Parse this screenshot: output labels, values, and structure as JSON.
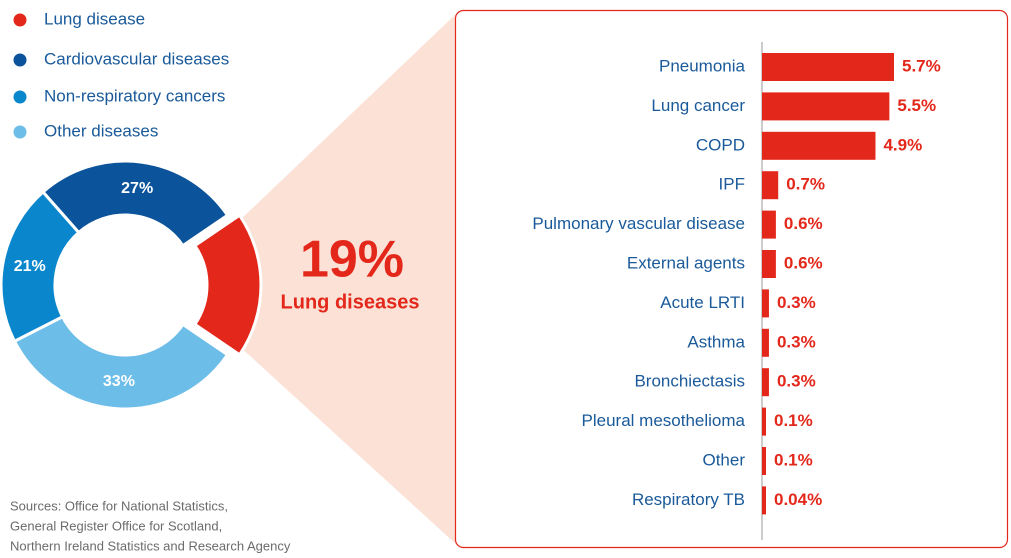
{
  "chart_data": [
    {
      "type": "pie",
      "categories": [
        "Lung disease",
        "Cardiovascular diseases",
        "Non-respiratory cancers",
        "Other diseases"
      ],
      "values": [
        19,
        27,
        21,
        33
      ],
      "value_labels": [
        "19%",
        "27%",
        "21%",
        "33%"
      ],
      "colors": [
        "#e3281b",
        "#0b539a",
        "#0a86cc",
        "#6dbde9"
      ],
      "annotation": "Lung diseases",
      "legend": "top-left"
    },
    {
      "type": "hbar",
      "categories": [
        "Pneumonia",
        "Lung cancer",
        "COPD",
        "IPF",
        "Pulmonary vascular disease",
        "External agents",
        "Acute LRTI",
        "Asthma",
        "Bronchiectasis",
        "Pleural mesothelioma",
        "Other",
        "Respiratory TB"
      ],
      "values": [
        5.7,
        5.5,
        4.9,
        0.7,
        0.6,
        0.6,
        0.3,
        0.3,
        0.3,
        0.1,
        0.1,
        0.04
      ],
      "value_labels": [
        "5.7%",
        "5.5%",
        "4.9%",
        "0.7%",
        "0.6%",
        "0.6%",
        "0.3%",
        "0.3%",
        "0.3%",
        "0.1%",
        "0.1%",
        "0.04%"
      ],
      "color": "#e3281b"
    }
  ],
  "sources": [
    "Sources: Office for National Statistics,",
    "General Register Office for Scotland,",
    "Northern Ireland Statistics and Research Agency"
  ]
}
